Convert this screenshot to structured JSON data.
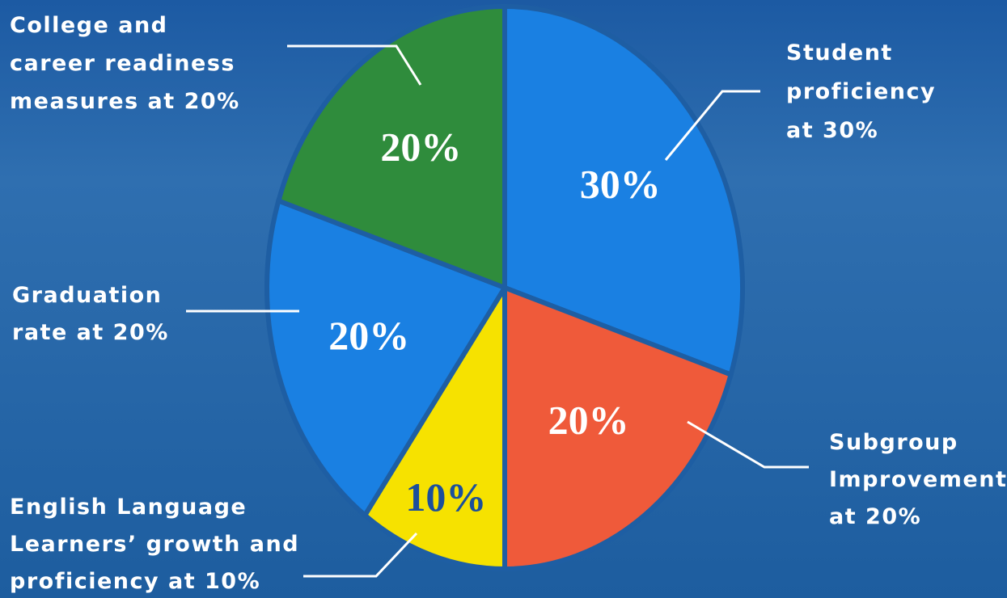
{
  "chart_data": {
    "type": "pie",
    "categories": [
      [
        "Student",
        "proficiency",
        "at 30%"
      ],
      [
        "Subgroup",
        "Improvement",
        "at 20%"
      ],
      [
        "English Language",
        "Learners’ growth and",
        "proficiency at 10%"
      ],
      [
        "Graduation",
        "rate at 20%"
      ],
      [
        "College and",
        "career readiness",
        "measures at 20%"
      ]
    ],
    "values": [
      30,
      20,
      10,
      20,
      20
    ],
    "value_labels": [
      "30%",
      "20%",
      "10%",
      "20%",
      "20%"
    ],
    "colors": [
      "#1a80e2",
      "#ef5a3a",
      "#f6e200",
      "#1a80e2",
      "#2f8c3c"
    ]
  }
}
